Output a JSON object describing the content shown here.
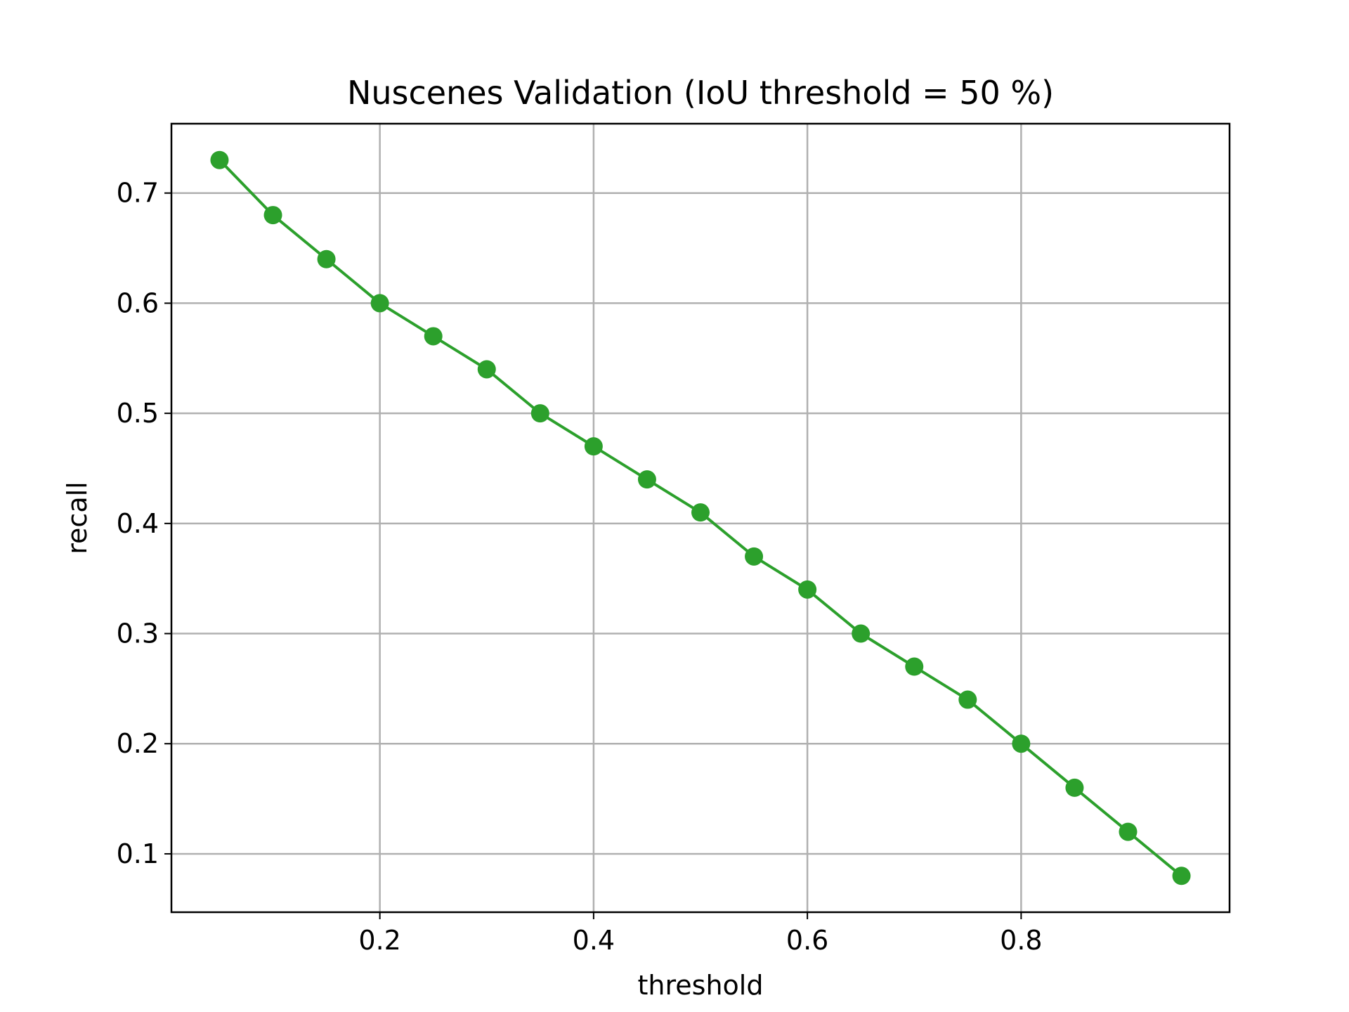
{
  "chart_data": {
    "type": "line",
    "title": "Nuscenes Validation (IoU threshold = 50 %)",
    "xlabel": "threshold",
    "ylabel": "recall",
    "xlim": [
      0.005,
      0.995
    ],
    "ylim": [
      0.047,
      0.763
    ],
    "xticks": [
      0.2,
      0.4,
      0.6,
      0.8
    ],
    "xtick_labels": [
      "0.2",
      "0.4",
      "0.6",
      "0.8"
    ],
    "yticks": [
      0.1,
      0.2,
      0.3,
      0.4,
      0.5,
      0.6,
      0.7
    ],
    "ytick_labels": [
      "0.1",
      "0.2",
      "0.3",
      "0.4",
      "0.5",
      "0.6",
      "0.7"
    ],
    "grid": true,
    "legend": "none",
    "series": [
      {
        "color": "#2ca02c",
        "marker": "circle",
        "x": [
          0.05,
          0.1,
          0.15,
          0.2,
          0.25,
          0.3,
          0.35,
          0.4,
          0.45,
          0.5,
          0.55,
          0.6,
          0.65,
          0.7,
          0.75,
          0.8,
          0.85,
          0.9,
          0.95
        ],
        "y": [
          0.73,
          0.68,
          0.64,
          0.6,
          0.57,
          0.54,
          0.5,
          0.47,
          0.44,
          0.41,
          0.37,
          0.34,
          0.3,
          0.27,
          0.24,
          0.2,
          0.16,
          0.12,
          0.08
        ]
      }
    ]
  }
}
